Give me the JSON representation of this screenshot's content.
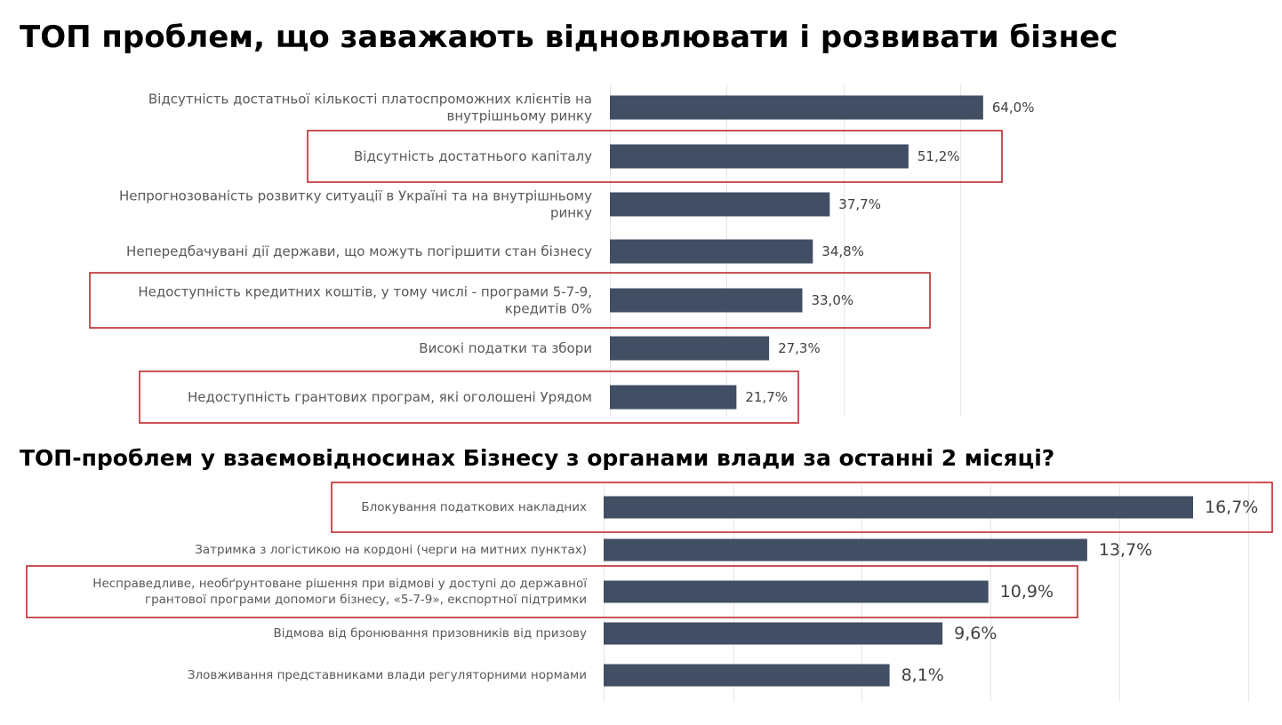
{
  "chart_data": [
    {
      "type": "bar",
      "orientation": "horizontal",
      "title": "ТОП проблем, що заважають відновлювати і розвивати бізнес",
      "categories": [
        "Відсутність достатньої кількості платоспроможних клієнтів на внутрішньому ринку",
        "Відсутність достатнього капіталу",
        "Непрогнозованість розвитку ситуації в Україні та на внутрішньому ринку",
        "Непередбачувані дії держави, що можуть погіршити стан бізнесу",
        "Недоступність кредитних коштів, у тому числі - програми 5-7-9, кредитів  0%",
        "Високі податки та збори",
        "Недоступність грантових програм, які оголошені Урядом"
      ],
      "values": [
        64.0,
        51.2,
        37.7,
        34.8,
        33.0,
        27.3,
        21.7
      ],
      "value_labels": [
        "64,0%",
        "51,2%",
        "37,7%",
        "34,8%",
        "33,0%",
        "27,3%",
        "21,7%"
      ],
      "highlighted": [
        1,
        4,
        6
      ],
      "grid": true,
      "bar_color": "#414e63",
      "highlight_color": "#c0282d"
    },
    {
      "type": "bar",
      "orientation": "horizontal",
      "title": "ТОП-проблем у взаємовідносинах Бізнесу з органами влади за останні 2 місяці?",
      "categories": [
        "Блокування податкових накладних",
        "Затримка з логістикою на кордоні (черги на митних пунктах)",
        "Несправедливе, необґрунтоване рішення при відмові у доступі до державної грантової програми допомоги бізнесу, «5-7-9», експортної підтримки",
        "Відмова від бронювання призовників від призову",
        "Зловживання представниками влади регуляторними нормами"
      ],
      "values": [
        16.7,
        13.7,
        10.9,
        9.6,
        8.1
      ],
      "value_labels": [
        "16,7%",
        "13,7%",
        "10,9%",
        "9,6%",
        "8,1%"
      ],
      "highlighted": [
        0,
        2
      ],
      "grid": true,
      "bar_color": "#414e63",
      "highlight_color": "#c0282d"
    }
  ]
}
